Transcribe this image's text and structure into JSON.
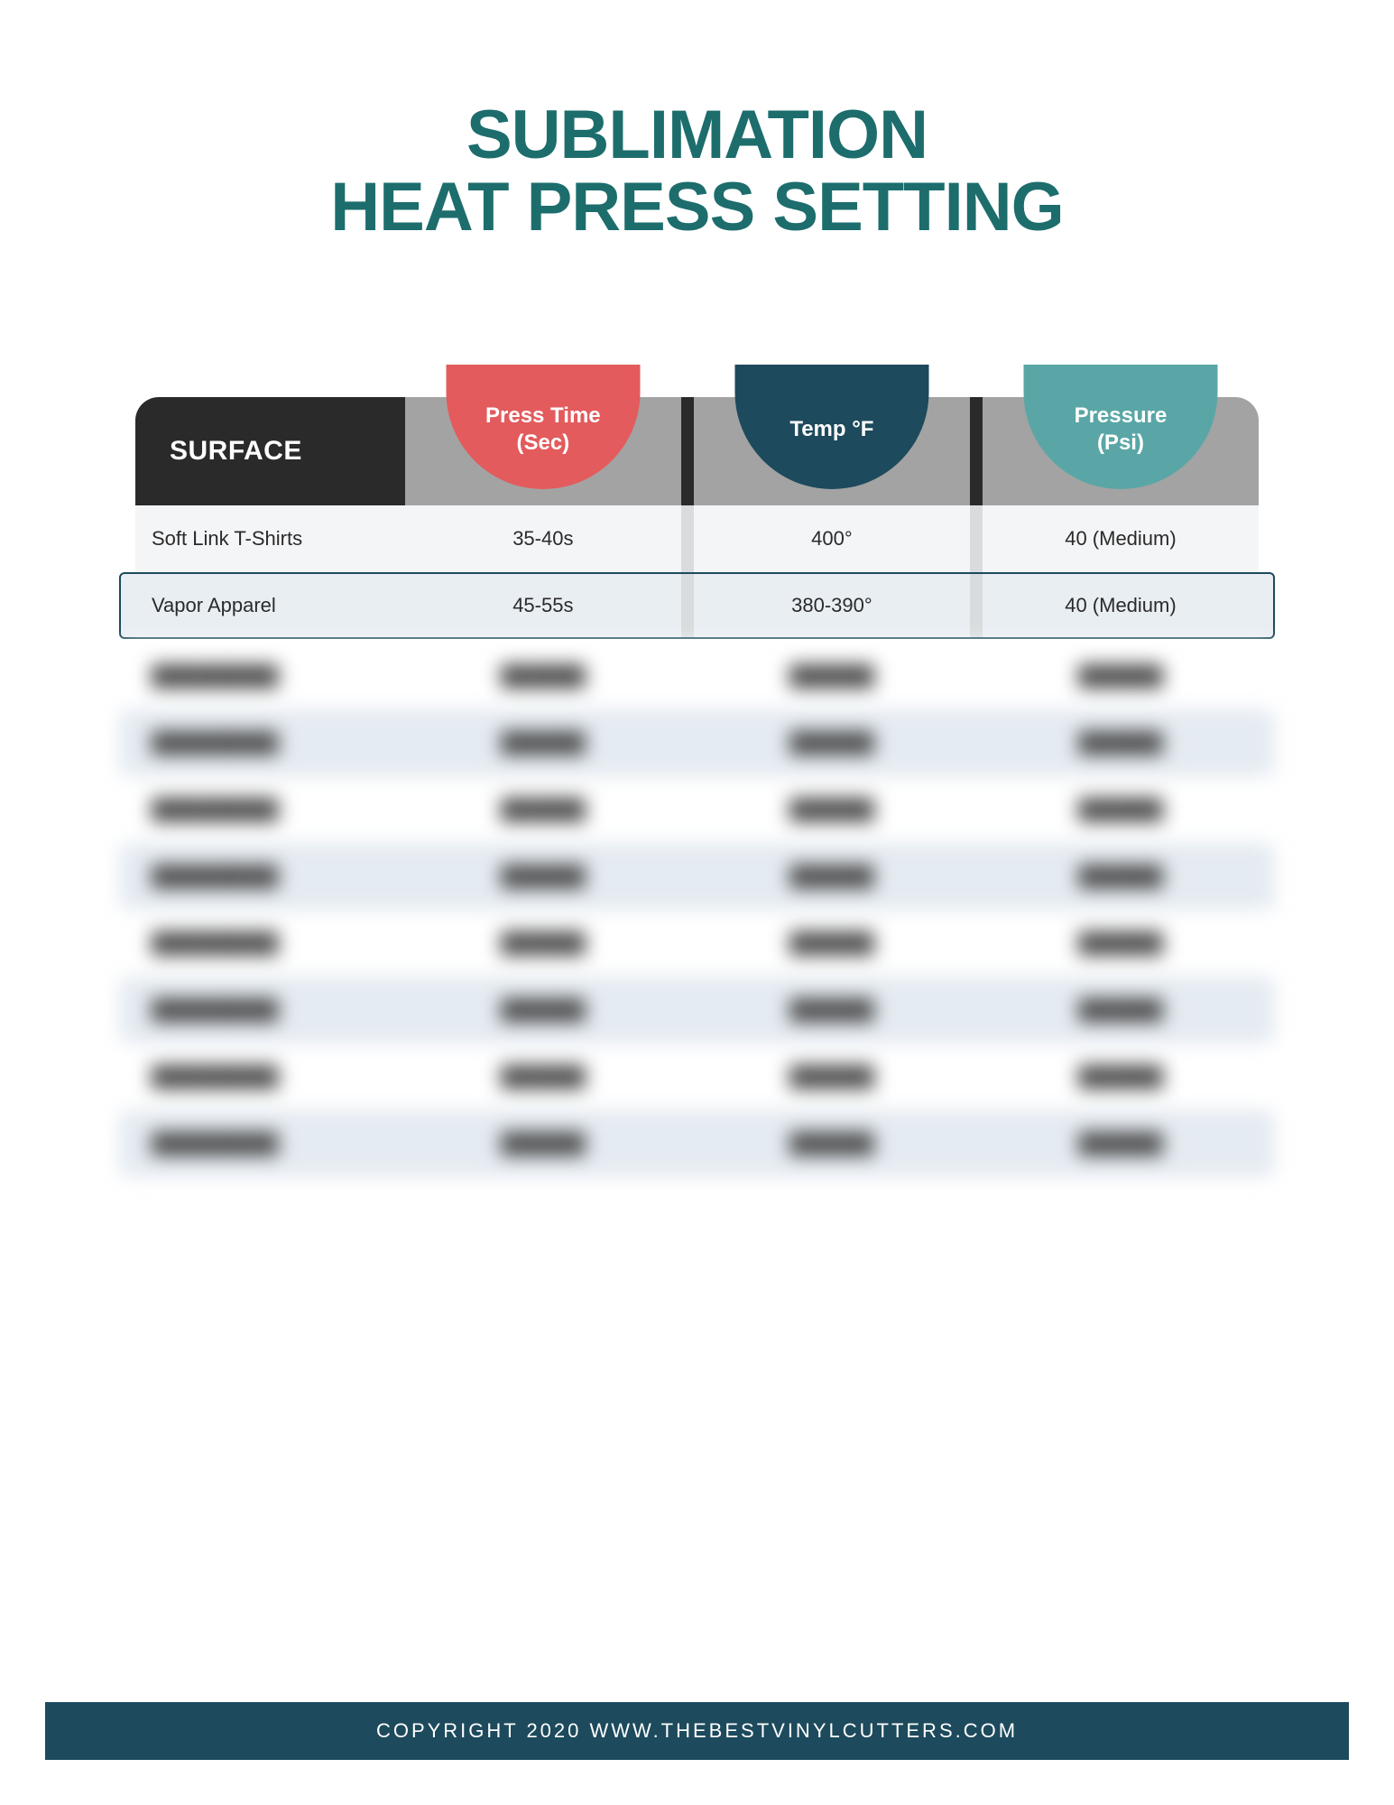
{
  "title": {
    "line1": "SUBLIMATION",
    "line2": "HEAT PRESS SETTING",
    "color": "#1d6d6d",
    "fontsize": 76
  },
  "table": {
    "header": {
      "surface_label": "SURFACE",
      "surface_bg": "#2a2a2a",
      "rest_bg": "#a3a3a3",
      "columns": [
        {
          "line1": "Press Time",
          "line2": "(Sec)",
          "bg": "#e35b5d"
        },
        {
          "line1": "Temp °F",
          "line2": "",
          "bg": "#1d4a5c"
        },
        {
          "line1": "Pressure",
          "line2": "(Psi)",
          "bg": "#5aa6a6"
        }
      ]
    },
    "visible_rows": [
      {
        "surface": "Soft Link T-Shirts",
        "time": "35-40s",
        "temp": "400°",
        "pressure": "40 (Medium)",
        "bg": "#f4f5f7",
        "highlight": false
      },
      {
        "surface": "Vapor Apparel",
        "time": "45-55s",
        "temp": "380-390°",
        "pressure": "40 (Medium)",
        "bg": "#e9eef3",
        "highlight": true
      }
    ],
    "blurred_rows": [
      {
        "bg": "#ffffff"
      },
      {
        "bg": "#e2e9f0"
      },
      {
        "bg": "#ffffff"
      },
      {
        "bg": "#e2e9f0"
      },
      {
        "bg": "#ffffff"
      },
      {
        "bg": "#e2e9f0"
      },
      {
        "bg": "#ffffff"
      },
      {
        "bg": "#e2e9f0"
      }
    ],
    "blur_placeholder": {
      "surface": "█████████",
      "cell": "██████"
    },
    "highlight_border": "#1d4a5c",
    "col_sep_light": "#d9dcde"
  },
  "footer": {
    "text": "COPYRIGHT  2020  WWW.THEBESTVINYLCUTTERS.COM",
    "bg": "#1d4a5c"
  }
}
